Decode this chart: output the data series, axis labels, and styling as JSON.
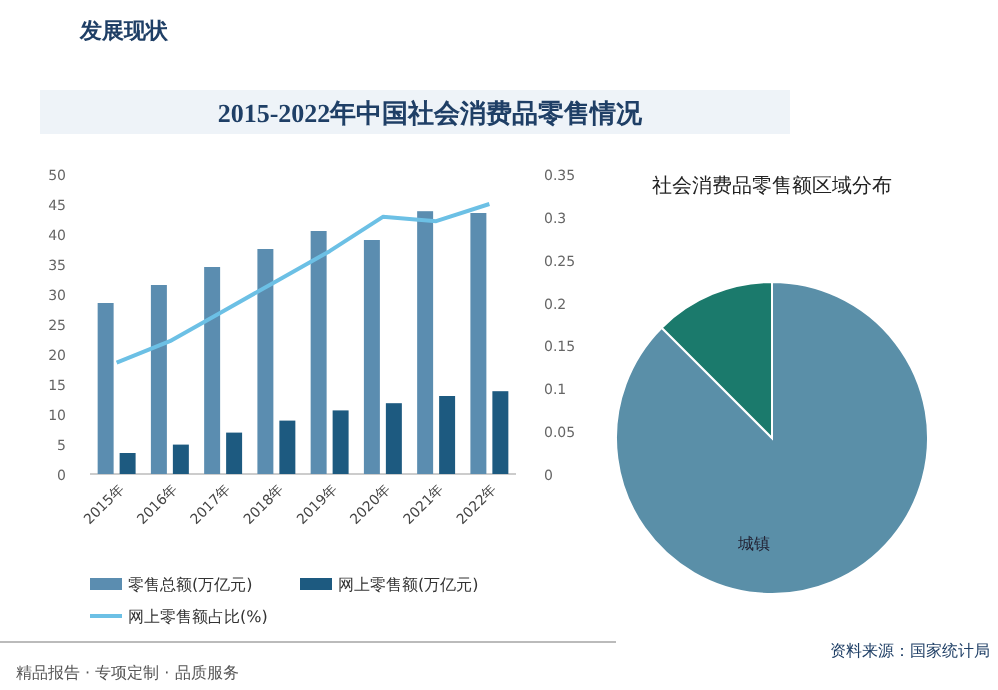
{
  "chart_data": [
    {
      "type": "bar",
      "title": "2015-2022年中国社会消费品零售情况",
      "categories": [
        "2015年",
        "2016年",
        "2017年",
        "2018年",
        "2019年",
        "2020年",
        "2021年",
        "2022年"
      ],
      "series": [
        {
          "name": "零售总额(万亿元)",
          "type": "bar",
          "color": "#5b8db0",
          "values": [
            28.5,
            31.5,
            34.5,
            37.5,
            40.5,
            39,
            43.8,
            43.5
          ]
        },
        {
          "name": "网上零售额(万亿元)",
          "type": "bar",
          "color": "#1d5a80",
          "values": [
            3.5,
            4.9,
            6.9,
            8.9,
            10.6,
            11.8,
            13,
            13.8
          ]
        },
        {
          "name": "网上零售额占比(%)",
          "type": "line",
          "axis": "y2",
          "color": "#6cc0e5",
          "values": [
            0.13,
            0.155,
            0.19,
            0.225,
            0.26,
            0.3,
            0.295,
            0.315
          ]
        }
      ],
      "ylim": [
        0,
        50
      ],
      "yticks": [
        0,
        5,
        10,
        15,
        20,
        25,
        30,
        35,
        40,
        45,
        50
      ],
      "y2lim": [
        0,
        0.35
      ],
      "y2ticks": [
        0,
        0.05,
        0.1,
        0.15,
        0.2,
        0.25,
        0.3,
        0.35
      ],
      "legend": "bottom",
      "annotations": [
        "发展现状",
        "资料来源：国家统计局",
        "精品报告 · 专项定制 · 品质服务"
      ]
    },
    {
      "type": "pie",
      "title": "社会消费品零售额区域分布",
      "categories": [
        "城镇",
        null
      ],
      "values": [
        87.5,
        12.5
      ],
      "colors": [
        "#5a8fa8",
        "#1b7a6c"
      ]
    }
  ]
}
